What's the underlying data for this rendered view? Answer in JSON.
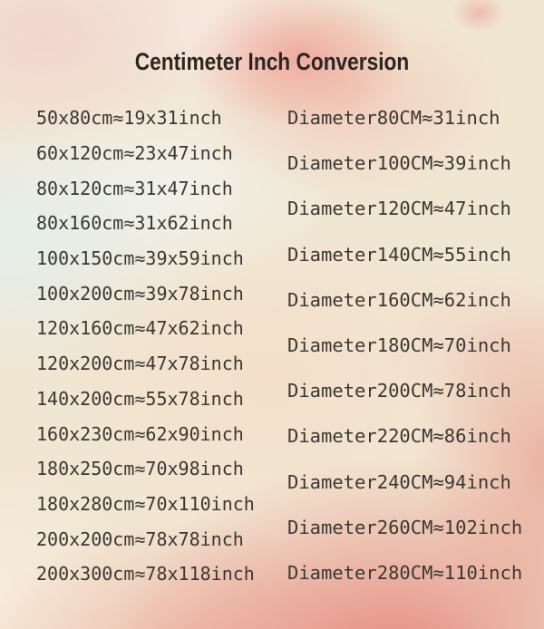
{
  "title": "Centimeter Inch Conversion",
  "colors": {
    "base_background": "#f1e6d2",
    "salmon_blob": "#ee9a8e",
    "pale_blue_wash": "#e4f0ee",
    "bottom_rose": "#e47d73",
    "row_text": "#3a3833",
    "title_text": "#2a2722"
  },
  "lists": {
    "rect_rows": [
      "50x80cm≈19x31inch",
      "60x120cm≈23x47inch",
      "80x120cm≈31x47inch",
      "80x160cm≈31x62inch",
      "100x150cm≈39x59inch",
      "100x200cm≈39x78inch",
      "120x160cm≈47x62inch",
      "120x200cm≈47x78inch",
      "140x200cm≈55x78inch",
      "160x230cm≈62x90inch",
      "180x250cm≈70x98inch",
      "180x280cm≈70x110inch",
      "200x200cm≈78x78inch",
      "200x300cm≈78x118inch"
    ],
    "diameter_rows": [
      "Diameter80CM≈31inch",
      "Diameter100CM≈39inch",
      "Diameter120CM≈47inch",
      "Diameter140CM≈55inch",
      "Diameter160CM≈62inch",
      "Diameter180CM≈70inch",
      "Diameter200CM≈78inch",
      "Diameter220CM≈86inch",
      "Diameter240CM≈94inch",
      "Diameter260CM≈102inch",
      "Diameter280CM≈110inch"
    ]
  },
  "chart_data": {
    "type": "table",
    "title": "Centimeter Inch Conversion",
    "columns": [
      "centimeter_size",
      "inch_size"
    ],
    "rectangular_conversions": [
      {
        "cm": "50x80cm",
        "inch": "19x31inch"
      },
      {
        "cm": "60x120cm",
        "inch": "23x47inch"
      },
      {
        "cm": "80x120cm",
        "inch": "31x47inch"
      },
      {
        "cm": "80x160cm",
        "inch": "31x62inch"
      },
      {
        "cm": "100x150cm",
        "inch": "39x59inch"
      },
      {
        "cm": "100x200cm",
        "inch": "39x78inch"
      },
      {
        "cm": "120x160cm",
        "inch": "47x62inch"
      },
      {
        "cm": "120x200cm",
        "inch": "47x78inch"
      },
      {
        "cm": "140x200cm",
        "inch": "55x78inch"
      },
      {
        "cm": "160x230cm",
        "inch": "62x90inch"
      },
      {
        "cm": "180x250cm",
        "inch": "70x98inch"
      },
      {
        "cm": "180x280cm",
        "inch": "70x110inch"
      },
      {
        "cm": "200x200cm",
        "inch": "78x78inch"
      },
      {
        "cm": "200x300cm",
        "inch": "78x118inch"
      }
    ],
    "diameter_conversions": [
      {
        "cm": "Diameter80CM",
        "inch": "31inch"
      },
      {
        "cm": "Diameter100CM",
        "inch": "39inch"
      },
      {
        "cm": "Diameter120CM",
        "inch": "47inch"
      },
      {
        "cm": "Diameter140CM",
        "inch": "55inch"
      },
      {
        "cm": "Diameter160CM",
        "inch": "62inch"
      },
      {
        "cm": "Diameter180CM",
        "inch": "70inch"
      },
      {
        "cm": "Diameter200CM",
        "inch": "78inch"
      },
      {
        "cm": "Diameter220CM",
        "inch": "86inch"
      },
      {
        "cm": "Diameter240CM",
        "inch": "94inch"
      },
      {
        "cm": "Diameter260CM",
        "inch": "102inch"
      },
      {
        "cm": "Diameter280CM",
        "inch": "110inch"
      }
    ]
  }
}
